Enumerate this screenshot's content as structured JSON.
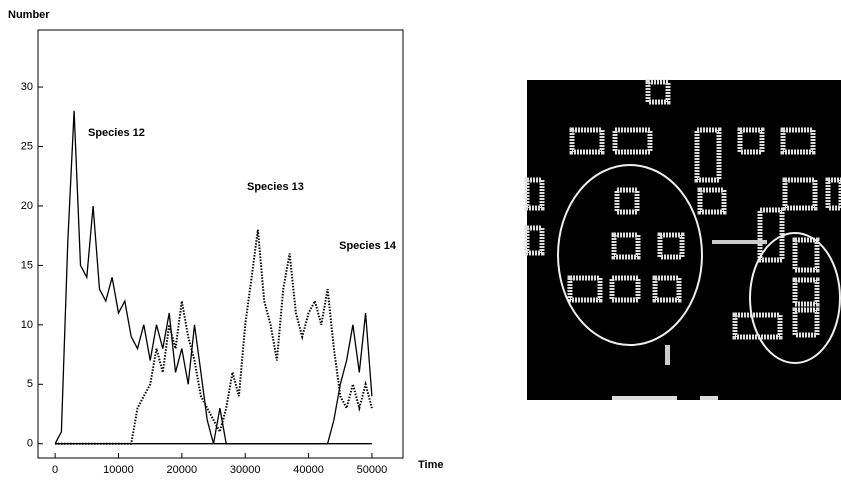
{
  "chart_data": {
    "type": "line",
    "y_label": "Number",
    "x_label": "Time",
    "x": [
      0,
      1000,
      2000,
      3000,
      4000,
      5000,
      6000,
      7000,
      8000,
      9000,
      10000,
      11000,
      12000,
      13000,
      14000,
      15000,
      16000,
      17000,
      18000,
      19000,
      20000,
      21000,
      22000,
      23000,
      24000,
      25000,
      26000,
      27000,
      28000,
      29000,
      30000,
      31000,
      32000,
      33000,
      34000,
      35000,
      36000,
      37000,
      38000,
      39000,
      40000,
      41000,
      42000,
      43000,
      44000,
      45000,
      46000,
      47000,
      48000,
      49000,
      50000
    ],
    "series": [
      {
        "name": "Species 12",
        "color": "#000000",
        "style": "solid",
        "values": [
          0,
          1,
          17,
          28,
          15,
          14,
          20,
          13,
          12,
          14,
          11,
          12,
          9,
          8,
          10,
          7,
          10,
          8,
          11,
          6,
          8,
          5,
          10,
          6,
          2,
          0,
          3,
          0,
          0,
          0,
          0,
          0,
          0,
          0,
          0,
          0,
          0,
          0,
          0,
          0,
          0,
          0,
          0,
          0,
          0,
          0,
          0,
          0,
          0,
          0,
          0
        ]
      },
      {
        "name": "Species 13",
        "color": "#000000",
        "style": "dotted",
        "values": [
          0,
          0,
          0,
          0,
          0,
          0,
          0,
          0,
          0,
          0,
          0,
          0,
          0,
          3,
          4,
          5,
          8,
          6,
          10,
          8,
          12,
          9,
          7,
          4,
          3,
          2,
          1,
          3,
          6,
          4,
          10,
          14,
          18,
          12,
          10,
          7,
          13,
          16,
          11,
          9,
          11,
          12,
          10,
          13,
          8,
          4,
          3,
          5,
          3,
          5,
          3
        ]
      },
      {
        "name": "Species 14",
        "color": "#000000",
        "style": "solid",
        "values": [
          0,
          0,
          0,
          0,
          0,
          0,
          0,
          0,
          0,
          0,
          0,
          0,
          0,
          0,
          0,
          0,
          0,
          0,
          0,
          0,
          0,
          0,
          0,
          0,
          0,
          0,
          0,
          0,
          0,
          0,
          0,
          0,
          0,
          0,
          0,
          0,
          0,
          0,
          0,
          0,
          0,
          0,
          0,
          0,
          2,
          5,
          7,
          10,
          6,
          11,
          4
        ]
      }
    ],
    "xlim": [
      -2700,
      54900
    ],
    "ylim": [
      -1.2,
      34.8
    ],
    "xticks": [
      0,
      10000,
      20000,
      30000,
      40000,
      50000
    ],
    "yticks": [
      0,
      5,
      10,
      15,
      20,
      25,
      30
    ]
  }
}
